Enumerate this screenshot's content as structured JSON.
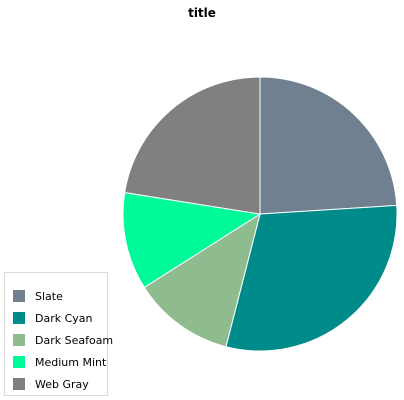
{
  "chart_data": {
    "type": "pie",
    "title": "title",
    "slices": [
      {
        "name": "Slate",
        "value": 24,
        "color": "#708090"
      },
      {
        "name": "Dark Cyan",
        "value": 30,
        "color": "#008B8B"
      },
      {
        "name": "Dark Seafoam",
        "value": 12,
        "color": "#8FBC8F"
      },
      {
        "name": "Medium Mint",
        "value": 11.5,
        "color": "#00FA9A"
      },
      {
        "name": "Web Gray",
        "value": 22.5,
        "color": "#808080"
      }
    ],
    "legend_position": "bottom-left",
    "start_angle_deg": 0,
    "direction": "clockwise"
  }
}
